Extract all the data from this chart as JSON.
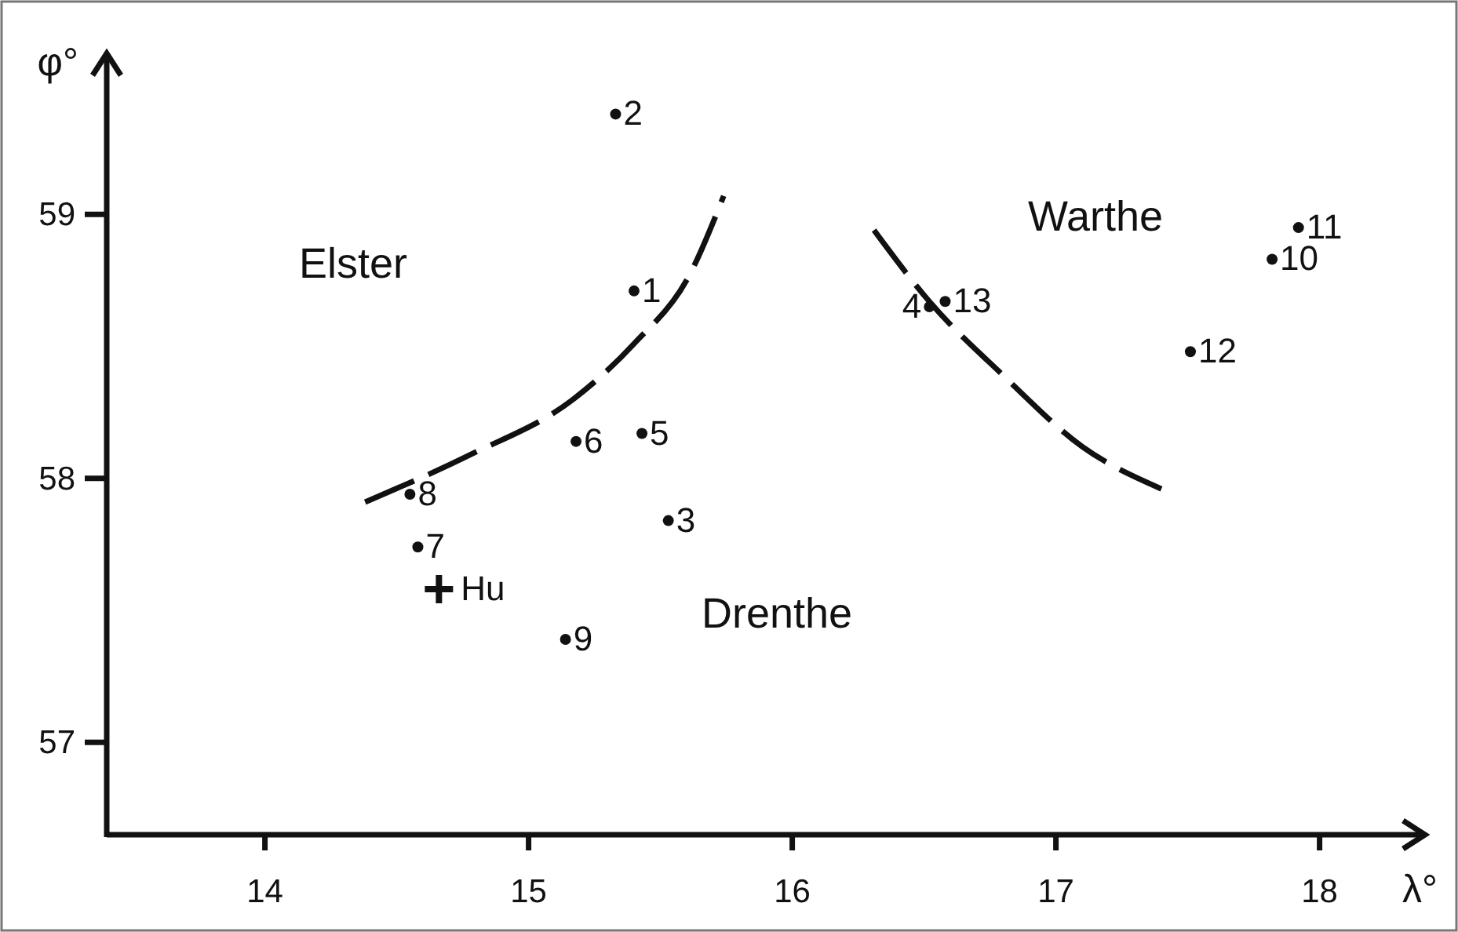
{
  "chart_data": {
    "type": "scatter",
    "xlabel": "λ°",
    "ylabel": "φ°",
    "xlim": [
      13.4,
      18.4
    ],
    "ylim": [
      56.65,
      59.61
    ],
    "xticks": [
      14,
      15,
      16,
      17,
      18
    ],
    "yticks": [
      57,
      58,
      59
    ],
    "series": [
      {
        "color": "#111111",
        "marker": "circle",
        "x": [
          15.4,
          15.33,
          15.53,
          16.52,
          15.43,
          15.18,
          14.58,
          14.55,
          15.14,
          17.82,
          17.92,
          17.51,
          16.58
        ],
        "values": [
          58.71,
          59.38,
          57.84,
          58.65,
          58.17,
          58.14,
          57.74,
          57.94,
          57.39,
          58.83,
          58.95,
          58.48,
          58.67
        ]
      },
      {
        "color": "#111111",
        "marker": "cross",
        "x": [
          14.66
        ],
        "values": [
          57.58
        ]
      },
      {
        "type": "line",
        "color": "#111111",
        "marker": "none",
        "line_style": "dashed",
        "x": [
          14.38,
          14.78,
          15.17,
          15.4,
          15.61,
          15.74
        ],
        "values": [
          57.91,
          58.09,
          58.3,
          58.51,
          58.77,
          59.07
        ]
      },
      {
        "type": "line",
        "color": "#111111",
        "marker": "none",
        "line_style": "dashed",
        "x": [
          16.31,
          16.52,
          16.8,
          17.1,
          17.4
        ],
        "values": [
          58.94,
          58.67,
          58.39,
          58.12,
          57.96
        ]
      }
    ],
    "annotations": [
      "Elster",
      "Drenthe",
      "Warthe",
      {
        "text": "1",
        "x": 15.4,
        "y": 58.71
      },
      {
        "text": "2",
        "x": 15.33,
        "y": 59.38
      },
      {
        "text": "3",
        "x": 15.53,
        "y": 57.84
      },
      {
        "text": "4",
        "x": 16.52,
        "y": 58.65
      },
      {
        "text": "5",
        "x": 15.43,
        "y": 58.17
      },
      {
        "text": "6",
        "x": 15.18,
        "y": 58.14
      },
      {
        "text": "7",
        "x": 14.58,
        "y": 57.74
      },
      {
        "text": "8",
        "x": 14.55,
        "y": 57.94
      },
      {
        "text": "9",
        "x": 15.14,
        "y": 57.39
      },
      {
        "text": "10",
        "x": 17.82,
        "y": 58.83
      },
      {
        "text": "11",
        "x": 17.92,
        "y": 58.95
      },
      {
        "text": "12",
        "x": 17.51,
        "y": 58.48
      },
      {
        "text": "13",
        "x": 16.58,
        "y": 58.67
      },
      {
        "text": "Hu",
        "x": 14.66,
        "y": 57.58
      }
    ]
  }
}
